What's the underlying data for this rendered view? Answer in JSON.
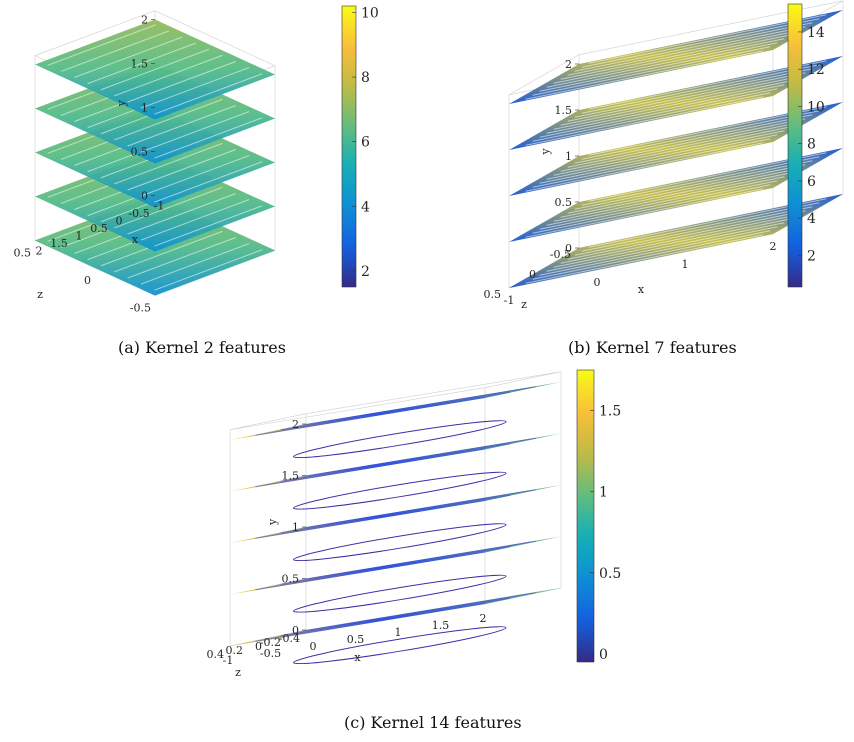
{
  "chart_data": [
    {
      "type": "stacked-slices-3d",
      "caption": "(a) Kernel 2 features",
      "xlabel": "x",
      "ylabel": "y",
      "zlabel": "z",
      "x_ticks": [
        "-1",
        "-0.5",
        "0",
        "0.5",
        "1",
        "1.5",
        "2"
      ],
      "y_ticks": [
        "0",
        "0.5",
        "1",
        "1.5",
        "2"
      ],
      "z_ticks": [
        "0.5",
        "0",
        "-0.5"
      ],
      "x_range": [
        -1,
        2
      ],
      "y_range": [
        0,
        2.1
      ],
      "z_range": [
        -0.5,
        0.5
      ],
      "slices_y": [
        0.0,
        0.5,
        1.0,
        1.5,
        2.0
      ],
      "colorbar": {
        "ticks": [
          "2",
          "4",
          "6",
          "8",
          "10"
        ],
        "range": [
          1.5,
          10.2
        ]
      },
      "colormap": "parula"
    },
    {
      "type": "stacked-slices-3d",
      "caption": "(b) Kernel 7 features",
      "xlabel": "x",
      "ylabel": "y",
      "zlabel": "z",
      "x_ticks": [
        "-1",
        "0",
        "1",
        "2"
      ],
      "y_ticks": [
        "0",
        "0.5",
        "1",
        "1.5",
        "2"
      ],
      "z_ticks": [
        "-0.5",
        "0",
        "0.5"
      ],
      "x_range": [
        -1,
        2
      ],
      "y_range": [
        0,
        2.1
      ],
      "z_range": [
        -0.5,
        0.5
      ],
      "slices_y": [
        0.0,
        0.5,
        1.0,
        1.5,
        2.0
      ],
      "colorbar": {
        "ticks": [
          "2",
          "4",
          "6",
          "8",
          "10",
          "12",
          "14"
        ],
        "range": [
          0.3,
          15.5
        ]
      },
      "colormap": "parula"
    },
    {
      "type": "stacked-slices-3d",
      "caption": "(c) Kernel 14 features",
      "xlabel": "x",
      "ylabel": "y",
      "zlabel": "z",
      "x_ticks": [
        "-1",
        "-0.5",
        "0",
        "0.5",
        "1",
        "1.5",
        "2"
      ],
      "y_ticks": [
        "0",
        "0.5",
        "1",
        "1.5",
        "2"
      ],
      "z_ticks": [
        "-0.4",
        "-0.2",
        "0",
        "0.2",
        "0.4"
      ],
      "x_range": [
        -1,
        2
      ],
      "y_range": [
        0,
        2.1
      ],
      "z_range": [
        -0.4,
        0.4
      ],
      "slices_y": [
        0.0,
        0.5,
        1.0,
        1.5,
        2.0
      ],
      "colorbar": {
        "ticks": [
          "0",
          "0.5",
          "1",
          "1.5"
        ],
        "range": [
          -0.05,
          1.75
        ]
      },
      "colormap": "parula"
    }
  ]
}
